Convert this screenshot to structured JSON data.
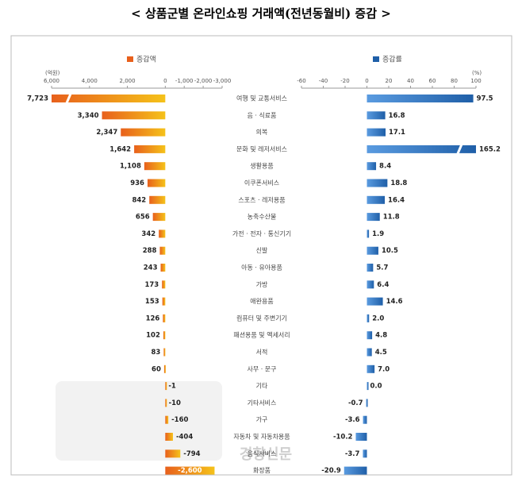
{
  "chart_data": {
    "type": "butterfly-bar",
    "title": "< 상품군별 온라인쇼핑 거래액(전년동월비) 증감 >",
    "watermark": "경향신문",
    "categories": [
      "여행 및 교통서비스",
      "음 · 식료품",
      "의복",
      "문화 및 레저서비스",
      "생활용품",
      "이쿠폰서비스",
      "스포츠 · 레저용품",
      "농축수산물",
      "가전 · 전자 · 통신기기",
      "신발",
      "아동 · 유아용품",
      "가방",
      "애완용품",
      "컴퓨터 및 주변기기",
      "패션용품 및 액세서리",
      "서적",
      "사무 · 문구",
      "기타",
      "기타서비스",
      "가구",
      "자동차 및 자동차용품",
      "음식서비스",
      "화장품"
    ],
    "left": {
      "name": "증감액",
      "unit": "(억원)",
      "color": "#e8601c",
      "values": [
        7723,
        3340,
        2347,
        1642,
        1108,
        936,
        842,
        656,
        342,
        288,
        243,
        173,
        153,
        126,
        102,
        83,
        60,
        -1,
        -10,
        -160,
        -404,
        -794,
        -2600
      ],
      "value_labels": [
        "7,723",
        "3,340",
        "2,347",
        "1,642",
        "1,108",
        "936",
        "842",
        "656",
        "342",
        "288",
        "243",
        "173",
        "153",
        "126",
        "102",
        "83",
        "60",
        "-1",
        "-10",
        "-160",
        "-404",
        "-794",
        "-2,600"
      ],
      "xlim": [
        6000,
        -3000
      ],
      "xticks": [
        {
          "value": 6000,
          "label": "6,000"
        },
        {
          "value": 4000,
          "label": "4,000"
        },
        {
          "value": 2000,
          "label": "2,000"
        },
        0,
        {
          "value": -1000,
          "label": "-1,000"
        },
        {
          "value": -2000,
          "label": "-2,000"
        },
        {
          "value": -3000,
          "label": "-3,000"
        }
      ]
    },
    "right": {
      "name": "증감률",
      "unit": "(%)",
      "color": "#1f5fa8",
      "values": [
        97.5,
        16.8,
        17.1,
        165.2,
        8.4,
        18.8,
        16.4,
        11.8,
        1.9,
        10.5,
        5.7,
        6.4,
        14.6,
        2.0,
        4.8,
        4.5,
        7.0,
        0.0,
        -0.7,
        -3.6,
        -10.2,
        -3.7,
        -20.9
      ],
      "value_labels": [
        "97.5",
        "16.8",
        "17.1",
        "165.2",
        "8.4",
        "18.8",
        "16.4",
        "11.8",
        "1.9",
        "10.5",
        "5.7",
        "6.4",
        "14.6",
        "2.0",
        "4.8",
        "4.5",
        "7.0",
        "0.0",
        "-0.7",
        "-3.6",
        "-10.2",
        "-3.7",
        "-20.9"
      ],
      "xlim": [
        -60,
        100
      ],
      "xticks": [
        -60,
        -40,
        -20,
        0,
        20,
        40,
        60,
        80,
        100
      ]
    }
  }
}
